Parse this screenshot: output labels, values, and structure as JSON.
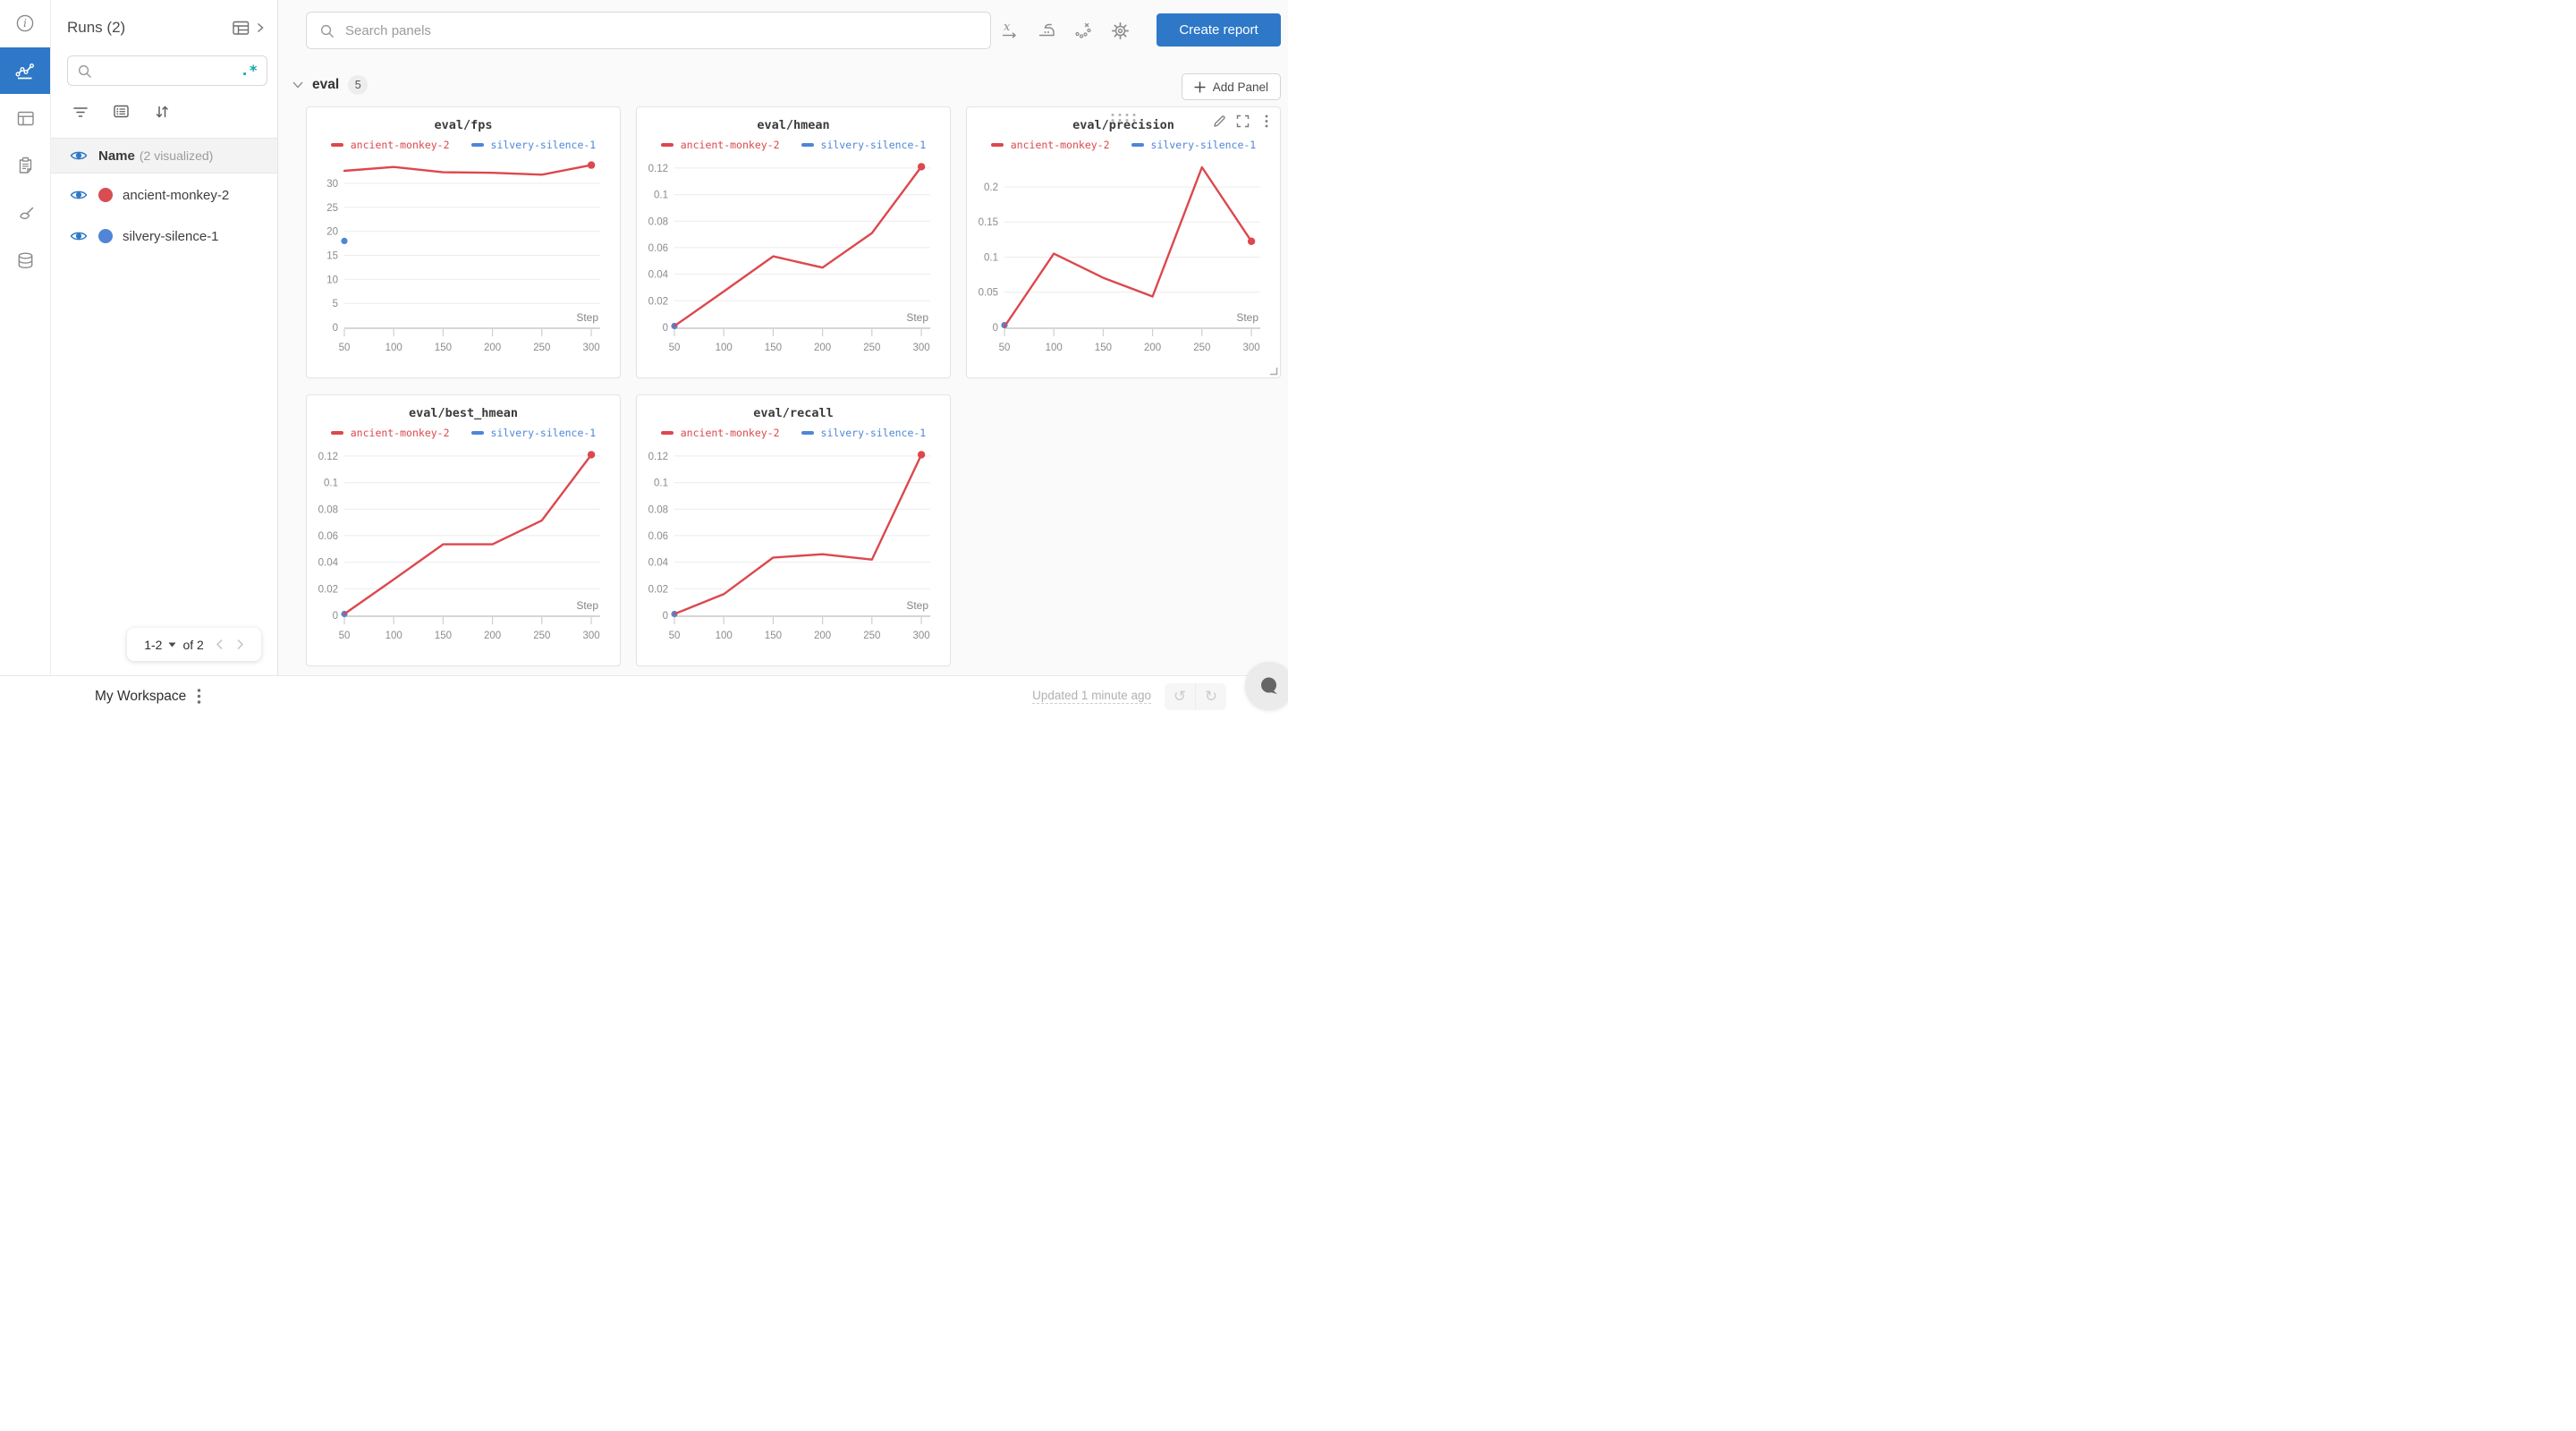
{
  "colors": {
    "accent_blue": "#2e78c7",
    "run_red": "#dc484d",
    "run_blue": "#4e86d8",
    "regex_teal": "#12a4a4"
  },
  "left_rail": {
    "items": [
      "info",
      "line-chart",
      "table",
      "clipboard",
      "brush",
      "database"
    ],
    "active_item": "line-chart"
  },
  "runs_panel": {
    "title": "Runs (2)",
    "search_placeholder": "",
    "toolbar_icons": [
      "filter",
      "list",
      "sort"
    ],
    "header": {
      "label": "Name",
      "sub": "(2 visualized)"
    },
    "runs": [
      {
        "name": "ancient-monkey-2",
        "color": "#d94c51",
        "visible": true
      },
      {
        "name": "silvery-silence-1",
        "color": "#5285d8",
        "visible": true
      }
    ],
    "pagination": {
      "range": "1-2",
      "of_label": "of 2"
    }
  },
  "topbar": {
    "search_placeholder": "Search panels",
    "icons": [
      "x-axis",
      "iron-smoothing",
      "outlier-scatter",
      "settings-gear"
    ],
    "create_report_label": "Create report"
  },
  "section": {
    "title": "eval",
    "count": "5",
    "add_panel_label": "Add Panel"
  },
  "chart_data": [
    {
      "type": "line",
      "title": "eval/fps",
      "xlabel": "Step",
      "grid": true,
      "legend": "top",
      "xlim": [
        50,
        309
      ],
      "ylim": [
        0,
        35.4
      ],
      "x_ticks": [
        {
          "v": 50,
          "label": "50"
        },
        {
          "v": 100,
          "label": "100"
        },
        {
          "v": 150,
          "label": "150"
        },
        {
          "v": 200,
          "label": "200"
        },
        {
          "v": 250,
          "label": "250"
        },
        {
          "v": 300,
          "label": "300"
        }
      ],
      "y_ticks": [
        {
          "v": 0,
          "label": "0"
        },
        {
          "v": 5,
          "label": "5"
        },
        {
          "v": 10,
          "label": "10"
        },
        {
          "v": 15,
          "label": "15"
        },
        {
          "v": 20,
          "label": "20"
        },
        {
          "v": 25,
          "label": "25"
        },
        {
          "v": 30,
          "label": "30"
        }
      ],
      "series": [
        {
          "name": "ancient-monkey-2",
          "color": "#dc484d",
          "x": [
            50,
            100,
            150,
            200,
            250,
            300
          ],
          "y": [
            32.6,
            33.4,
            32.3,
            32.2,
            31.8,
            33.8
          ],
          "end_dot": true
        },
        {
          "name": "silvery-silence-1",
          "color": "#4e86d8",
          "x": [
            50
          ],
          "y": [
            18
          ]
        }
      ],
      "hovered": false
    },
    {
      "type": "line",
      "title": "eval/hmean",
      "xlabel": "Step",
      "grid": true,
      "legend": "top",
      "xlim": [
        50,
        309
      ],
      "ylim": [
        0,
        0.128
      ],
      "x_ticks": [
        {
          "v": 50,
          "label": "50"
        },
        {
          "v": 100,
          "label": "100"
        },
        {
          "v": 150,
          "label": "150"
        },
        {
          "v": 200,
          "label": "200"
        },
        {
          "v": 250,
          "label": "250"
        },
        {
          "v": 300,
          "label": "300"
        }
      ],
      "y_ticks": [
        {
          "v": 0,
          "label": "0"
        },
        {
          "v": 0.02,
          "label": "0.02"
        },
        {
          "v": 0.04,
          "label": "0.04"
        },
        {
          "v": 0.06,
          "label": "0.06"
        },
        {
          "v": 0.08,
          "label": "0.08"
        },
        {
          "v": 0.1,
          "label": "0.1"
        },
        {
          "v": 0.12,
          "label": "0.12"
        }
      ],
      "series": [
        {
          "name": "ancient-monkey-2",
          "color": "#dc484d",
          "x": [
            50,
            100,
            150,
            200,
            250,
            300
          ],
          "y": [
            0.001,
            0.027,
            0.0535,
            0.045,
            0.071,
            0.121
          ],
          "end_dot": true
        },
        {
          "name": "silvery-silence-1",
          "color": "#4e86d8",
          "x": [
            50
          ],
          "y": [
            0.001
          ]
        }
      ],
      "hovered": false
    },
    {
      "type": "line",
      "title": "eval/precision",
      "xlabel": "Step",
      "grid": true,
      "legend": "top",
      "xlim": [
        50,
        309
      ],
      "ylim": [
        0,
        0.242
      ],
      "x_ticks": [
        {
          "v": 50,
          "label": "50"
        },
        {
          "v": 100,
          "label": "100"
        },
        {
          "v": 150,
          "label": "150"
        },
        {
          "v": 200,
          "label": "200"
        },
        {
          "v": 250,
          "label": "250"
        },
        {
          "v": 300,
          "label": "300"
        }
      ],
      "y_ticks": [
        {
          "v": 0,
          "label": "0"
        },
        {
          "v": 0.05,
          "label": "0.05"
        },
        {
          "v": 0.1,
          "label": "0.1"
        },
        {
          "v": 0.15,
          "label": "0.15"
        },
        {
          "v": 0.2,
          "label": "0.2"
        }
      ],
      "series": [
        {
          "name": "ancient-monkey-2",
          "color": "#dc484d",
          "x": [
            50,
            100,
            150,
            200,
            250,
            300
          ],
          "y": [
            0.001,
            0.105,
            0.0705,
            0.044,
            0.228,
            0.1225
          ],
          "end_dot": true
        },
        {
          "name": "silvery-silence-1",
          "color": "#4e86d8",
          "x": [
            50
          ],
          "y": [
            0.003
          ]
        }
      ],
      "hovered": true
    },
    {
      "type": "line",
      "title": "eval/best_hmean",
      "xlabel": "Step",
      "grid": true,
      "legend": "top",
      "xlim": [
        50,
        309
      ],
      "ylim": [
        0,
        0.128
      ],
      "x_ticks": [
        {
          "v": 50,
          "label": "50"
        },
        {
          "v": 100,
          "label": "100"
        },
        {
          "v": 150,
          "label": "150"
        },
        {
          "v": 200,
          "label": "200"
        },
        {
          "v": 250,
          "label": "250"
        },
        {
          "v": 300,
          "label": "300"
        }
      ],
      "y_ticks": [
        {
          "v": 0,
          "label": "0"
        },
        {
          "v": 0.02,
          "label": "0.02"
        },
        {
          "v": 0.04,
          "label": "0.04"
        },
        {
          "v": 0.06,
          "label": "0.06"
        },
        {
          "v": 0.08,
          "label": "0.08"
        },
        {
          "v": 0.1,
          "label": "0.1"
        },
        {
          "v": 0.12,
          "label": "0.12"
        }
      ],
      "series": [
        {
          "name": "ancient-monkey-2",
          "color": "#dc484d",
          "x": [
            50,
            100,
            150,
            200,
            250,
            300
          ],
          "y": [
            0.001,
            0.027,
            0.0535,
            0.0535,
            0.0715,
            0.121
          ],
          "end_dot": true
        },
        {
          "name": "silvery-silence-1",
          "color": "#4e86d8",
          "x": [
            50
          ],
          "y": [
            0.001
          ]
        }
      ],
      "hovered": false
    },
    {
      "type": "line",
      "title": "eval/recall",
      "xlabel": "Step",
      "grid": true,
      "legend": "top",
      "xlim": [
        50,
        309
      ],
      "ylim": [
        0,
        0.128
      ],
      "x_ticks": [
        {
          "v": 50,
          "label": "50"
        },
        {
          "v": 100,
          "label": "100"
        },
        {
          "v": 150,
          "label": "150"
        },
        {
          "v": 200,
          "label": "200"
        },
        {
          "v": 250,
          "label": "250"
        },
        {
          "v": 300,
          "label": "300"
        }
      ],
      "y_ticks": [
        {
          "v": 0,
          "label": "0"
        },
        {
          "v": 0.02,
          "label": "0.02"
        },
        {
          "v": 0.04,
          "label": "0.04"
        },
        {
          "v": 0.06,
          "label": "0.06"
        },
        {
          "v": 0.08,
          "label": "0.08"
        },
        {
          "v": 0.1,
          "label": "0.1"
        },
        {
          "v": 0.12,
          "label": "0.12"
        }
      ],
      "series": [
        {
          "name": "ancient-monkey-2",
          "color": "#dc484d",
          "x": [
            50,
            100,
            150,
            200,
            250,
            300
          ],
          "y": [
            0.001,
            0.016,
            0.0435,
            0.046,
            0.042,
            0.121
          ],
          "end_dot": true
        },
        {
          "name": "silvery-silence-1",
          "color": "#4e86d8",
          "x": [
            50
          ],
          "y": [
            0.001
          ]
        }
      ],
      "hovered": false
    }
  ],
  "bottombar": {
    "workspace": "My Workspace",
    "updated": "Updated 1 minute ago",
    "undo_icon": "↺",
    "redo_icon": "↻"
  }
}
